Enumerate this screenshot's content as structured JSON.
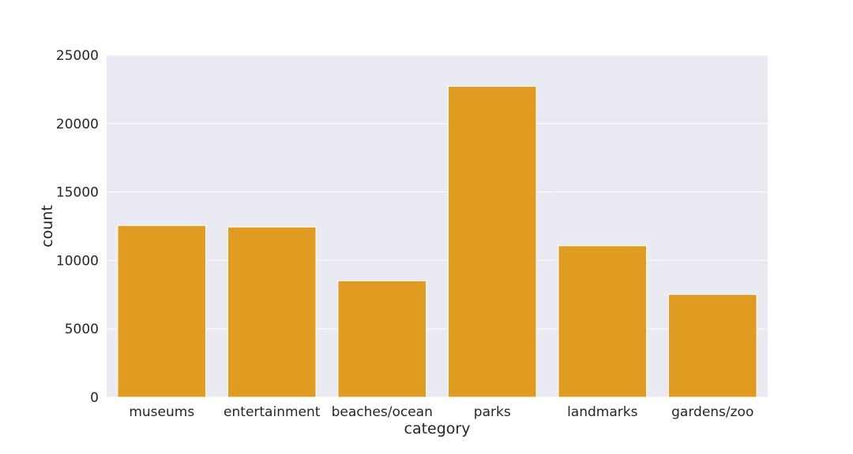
{
  "chart_data": {
    "type": "bar",
    "categories": [
      "museums",
      "entertainment",
      "beaches/ocean",
      "parks",
      "landmarks",
      "gardens/zoo"
    ],
    "values": [
      12550,
      12440,
      8510,
      22720,
      11070,
      7510
    ],
    "xlabel": "category",
    "ylabel": "count",
    "ylim": [
      0,
      25000
    ],
    "yticks": [
      0,
      5000,
      10000,
      15000,
      20000,
      25000
    ],
    "grid": true,
    "colors": {
      "bar": "#df9c21",
      "plot_background": "#eaeaf2",
      "grid": "#ffffff"
    }
  }
}
